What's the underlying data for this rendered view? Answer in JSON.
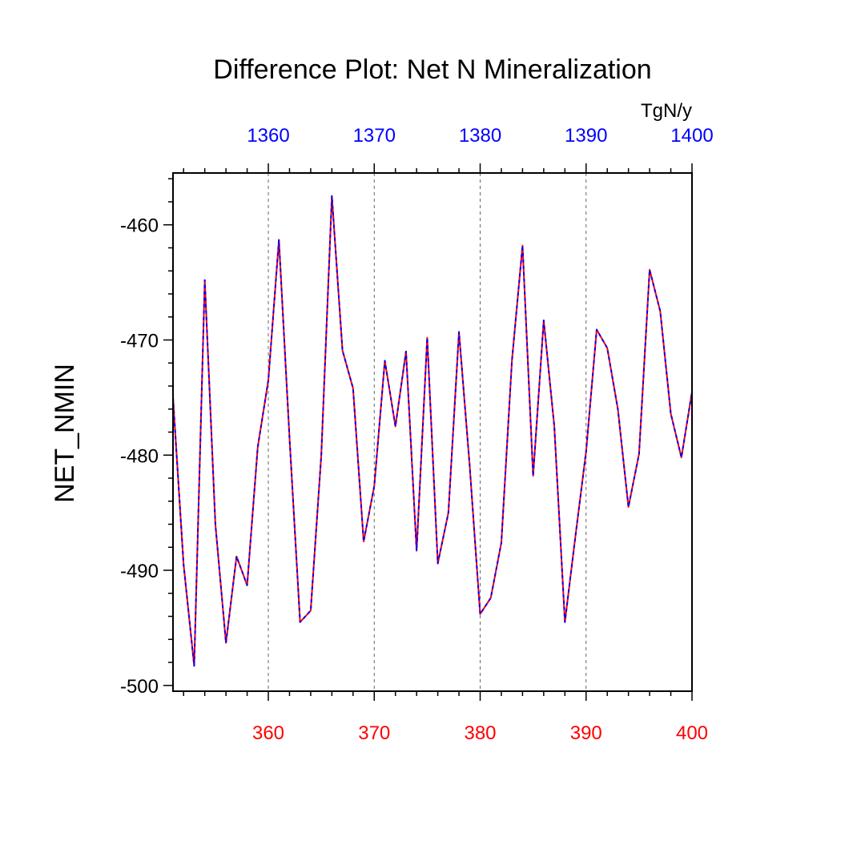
{
  "chart_data": {
    "type": "line",
    "title": "Difference Plot: Net N Mineralization",
    "units": "TgN/y",
    "ylabel": "NET_NMIN",
    "xlabel": "",
    "xlim": [
      351,
      400
    ],
    "ylim": [
      -500.5,
      -455.5
    ],
    "y_ticks": [
      -460,
      -470,
      -480,
      -490,
      -500
    ],
    "y_tick_labels": [
      "-460",
      "-470",
      "-480",
      "-490",
      "-500"
    ],
    "x_bottom_ticks": [
      360,
      370,
      380,
      390,
      400
    ],
    "x_bottom_tick_labels": [
      "360",
      "370",
      "380",
      "390",
      "400"
    ],
    "x_top_ticks": [
      360,
      370,
      380,
      390,
      400
    ],
    "x_top_tick_labels": [
      "1360",
      "1370",
      "1380",
      "1390",
      "1400"
    ],
    "vertical_gridlines_at": [
      360,
      370,
      380,
      390
    ],
    "colors": {
      "series_a": "#ff0000",
      "series_b": "#0000ff",
      "bottom_axis": "#ff0000",
      "top_axis": "#0000ff",
      "grid": "#666666",
      "axis": "#000000"
    },
    "series": [
      {
        "name": "red-solid",
        "style": "solid",
        "x": [
          351,
          352,
          353,
          354,
          355,
          356,
          357,
          358,
          359,
          360,
          361,
          362,
          363,
          364,
          365,
          366,
          367,
          368,
          369,
          370,
          371,
          372,
          373,
          374,
          375,
          376,
          377,
          378,
          379,
          380,
          381,
          382,
          383,
          384,
          385,
          386,
          387,
          388,
          389,
          390,
          391,
          392,
          393,
          394,
          395,
          396,
          397,
          398,
          399,
          400
        ],
        "values": [
          -475,
          -489.5,
          -498.3,
          -464.8,
          -486,
          -496.3,
          -488.8,
          -491.3,
          -479.3,
          -473.5,
          -461.3,
          -478.5,
          -494.5,
          -493.5,
          -480,
          -457.5,
          -470.9,
          -474.2,
          -487.5,
          -482.7,
          -471.8,
          -477.5,
          -471,
          -488.3,
          -469.8,
          -489.4,
          -485,
          -469.3,
          -480.8,
          -493.8,
          -492.4,
          -487.6,
          -471.8,
          -461.8,
          -481.8,
          -468.3,
          -477.5,
          -494.5,
          -487,
          -479.7,
          -469.1,
          -470.7,
          -476,
          -484.5,
          -479.9,
          -463.9,
          -467.5,
          -476.4,
          -480.2,
          -474.5
        ]
      },
      {
        "name": "blue-dashed",
        "style": "dashed",
        "x": [
          351,
          352,
          353,
          354,
          355,
          356,
          357,
          358,
          359,
          360,
          361,
          362,
          363,
          364,
          365,
          366,
          367,
          368,
          369,
          370,
          371,
          372,
          373,
          374,
          375,
          376,
          377,
          378,
          379,
          380,
          381,
          382,
          383,
          384,
          385,
          386,
          387,
          388,
          389,
          390,
          391,
          392,
          393,
          394,
          395,
          396,
          397,
          398,
          399,
          400
        ],
        "values": [
          -475,
          -489.5,
          -498.3,
          -464.8,
          -486,
          -496.3,
          -488.8,
          -491.3,
          -479.3,
          -473.5,
          -461.3,
          -478.5,
          -494.5,
          -493.5,
          -480,
          -457.5,
          -470.9,
          -474.2,
          -487.5,
          -482.7,
          -471.8,
          -477.5,
          -471,
          -488.3,
          -469.8,
          -489.4,
          -485,
          -469.3,
          -480.8,
          -493.8,
          -492.4,
          -487.6,
          -471.8,
          -461.8,
          -481.8,
          -468.3,
          -477.5,
          -494.5,
          -487,
          -479.7,
          -469.1,
          -470.7,
          -476,
          -484.5,
          -479.9,
          -463.9,
          -467.5,
          -476.4,
          -480.2,
          -474.5
        ]
      }
    ]
  }
}
